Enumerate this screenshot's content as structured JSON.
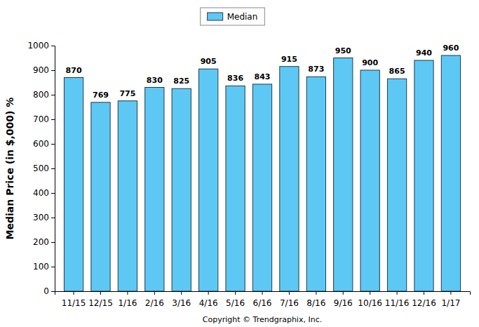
{
  "chart_data": {
    "type": "bar",
    "categories": [
      "11/15",
      "12/15",
      "1/16",
      "2/16",
      "3/16",
      "4/16",
      "5/16",
      "6/16",
      "7/16",
      "8/16",
      "9/16",
      "10/16",
      "11/16",
      "12/16",
      "1/17"
    ],
    "series": [
      {
        "name": "Median",
        "color": "#5ec8f5",
        "values": [
          870,
          769,
          775,
          830,
          825,
          905,
          836,
          843,
          915,
          873,
          950,
          900,
          865,
          940,
          960
        ]
      }
    ],
    "ylabel": "Median Price (in $,000) %",
    "annotations": [
      "Copyright © Trendgraphix, Inc."
    ],
    "ylim": [
      0,
      1000
    ],
    "yticks": [
      0,
      100,
      200,
      300,
      400,
      500,
      600,
      700,
      800,
      900,
      1000
    ],
    "grid": false,
    "legend": "top",
    "data_labels": true
  }
}
